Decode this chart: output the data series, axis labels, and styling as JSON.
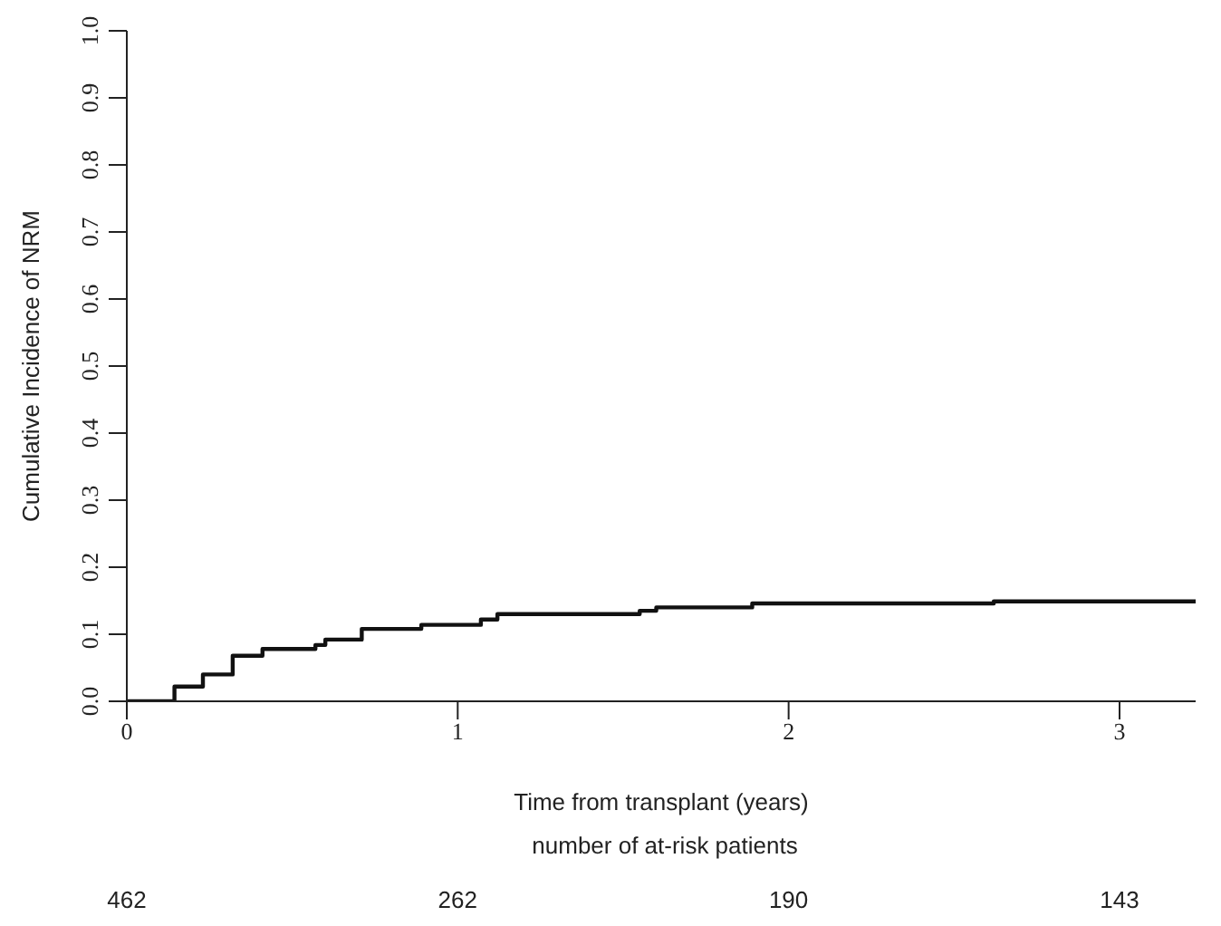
{
  "chart_data": {
    "type": "step",
    "xlabel": "Time from transplant (years)",
    "ylabel": "Cumulative Incidence of NRM",
    "x": [
      0,
      0.144,
      0.23,
      0.32,
      0.41,
      0.57,
      0.6,
      0.71,
      0.82,
      0.89,
      1.07,
      1.12,
      1.35,
      1.55,
      1.6,
      1.89,
      2.62,
      3.23
    ],
    "series": [
      {
        "color": "#111111",
        "values": [
          0,
          0.022,
          0.04,
          0.068,
          0.078,
          0.084,
          0.092,
          0.108,
          0.108,
          0.114,
          0.122,
          0.13,
          0.13,
          0.135,
          0.14,
          0.146,
          0.149,
          0.149
        ]
      }
    ],
    "xlim": [
      0,
      3.23
    ],
    "xticks": [
      0,
      1,
      2,
      3
    ],
    "ylim": [
      0,
      1
    ],
    "yticks": [
      {
        "value": 0,
        "label": "0.0"
      },
      {
        "value": 0.1,
        "label": "0.1"
      },
      {
        "value": 0.2,
        "label": "0.2"
      },
      {
        "value": 0.3,
        "label": "0.3"
      },
      {
        "value": 0.4,
        "label": "0.4"
      },
      {
        "value": 0.5,
        "label": "0.5"
      },
      {
        "value": 0.6,
        "label": "0.6"
      },
      {
        "value": 0.7,
        "label": "0.7"
      },
      {
        "value": 0.8,
        "label": "0.8"
      },
      {
        "value": 0.9,
        "label": "0.9"
      },
      {
        "value": 1,
        "label": "1.0"
      }
    ],
    "grid": false,
    "legend": false,
    "marker": "none",
    "line_style": "solid",
    "annotations": [
      "number of at-risk patients",
      "462",
      "262",
      "190",
      "143"
    ]
  }
}
